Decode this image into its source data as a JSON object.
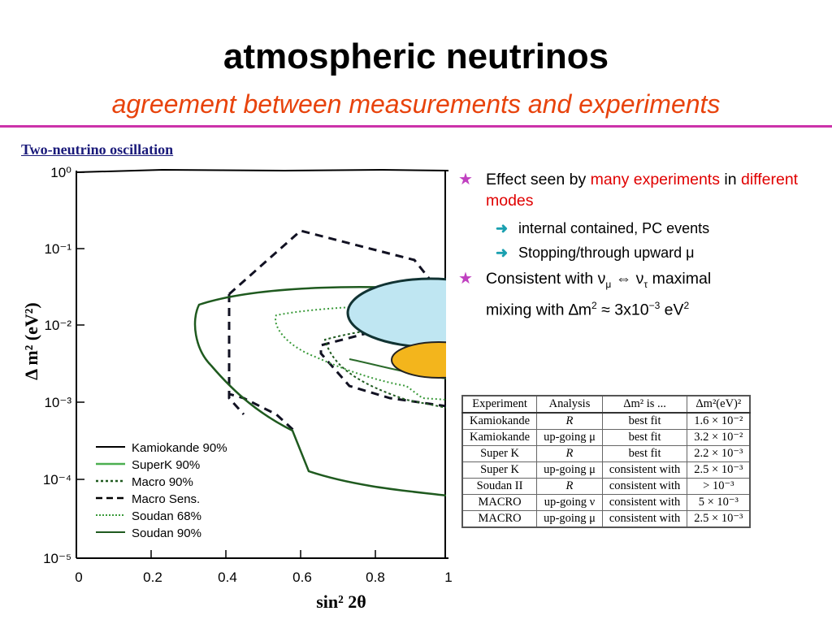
{
  "title": "atmospheric neutrinos",
  "subtitle": "agreement between measurements and experiments",
  "colors": {
    "title": "#000000",
    "subtitle": "#e8430c",
    "rule": "#cc33aa",
    "star": "#c040c0",
    "arrow": "#1aa0b0",
    "highlight": "#e00000",
    "superk_fill": "#bfe6f2",
    "fit_fill": "#f3b51c"
  },
  "figure": {
    "heading": "Two-neutrino oscillation",
    "ylabel": "Δ m² (eV²)",
    "xlabel": "sin² 2θ",
    "yticks": [
      "10⁰",
      "10⁻¹",
      "10⁻²",
      "10⁻³",
      "10⁻⁴",
      "10⁻⁵"
    ],
    "xticks": [
      "0",
      "0.2",
      "0.4",
      "0.6",
      "0.8",
      "1"
    ],
    "legend": [
      "Kamiokande 90%",
      "SuperK 90%",
      "Macro 90%",
      "Macro Sens.",
      "Soudan 68%",
      "Soudan 90%"
    ]
  },
  "bullets": {
    "b1_pre": "Effect seen by ",
    "b1_red1": "many experiments",
    "b1_mid": " in ",
    "b1_red2": "different modes",
    "sub1": "internal contained, PC events",
    "sub2": "Stopping/through upward μ",
    "b2_line1": "Consistent with ν",
    "b2_mu": "μ",
    "b2_iff": " ⇔ ν",
    "b2_tau": "τ",
    "b2_max": " maximal",
    "b2_line2a": "mixing with ∆m",
    "b2_sup2": "2",
    "b2_line2b": " ≈ 3x10",
    "b2_exp": "−3",
    "b2_line2c": " eV",
    "b2_sup2b": "2"
  },
  "table": {
    "headers": [
      "Experiment",
      "Analysis",
      "Δm² is ...",
      "Δm²(eV)²"
    ],
    "rows": [
      [
        "Kamiokande",
        "R",
        "best fit",
        "1.6 × 10⁻²"
      ],
      [
        "Kamiokande",
        "up-going μ",
        "best fit",
        "3.2 × 10⁻²"
      ],
      [
        "Super K",
        "R",
        "best fit",
        "2.2 × 10⁻³"
      ],
      [
        "Super K",
        "up-going μ",
        "consistent with",
        "2.5 × 10⁻³"
      ],
      [
        "Soudan II",
        "R",
        "consistent with",
        "> 10⁻³"
      ],
      [
        "MACRO",
        "up-going ν",
        "consistent with",
        "5 × 10⁻³"
      ],
      [
        "MACRO",
        "up-going μ",
        "consistent with",
        "2.5 × 10⁻³"
      ]
    ]
  }
}
